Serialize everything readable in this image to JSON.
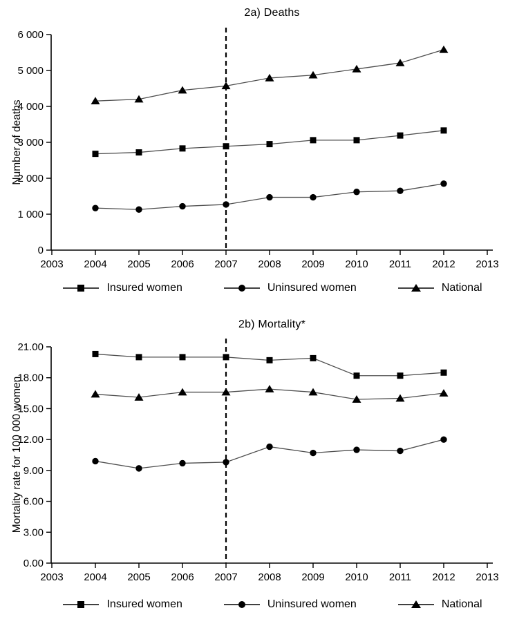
{
  "colors": {
    "axis": "#000000",
    "series_line": "#4d4d4d",
    "marker": "#000000",
    "reference_line": "#000000",
    "text": "#000000",
    "background": "#ffffff"
  },
  "chart_data": [
    {
      "type": "line",
      "title": "2a) Deaths",
      "ylabel": "Number of deaths",
      "xlim": [
        2003,
        2013
      ],
      "ylim": [
        0,
        6000
      ],
      "grid": false,
      "legend_position": "bottom",
      "reference_line_x": 2007,
      "x": [
        2004,
        2005,
        2006,
        2007,
        2008,
        2009,
        2010,
        2011,
        2012
      ],
      "xticks": [
        "2003",
        "2004",
        "2005",
        "2006",
        "2007",
        "2008",
        "2009",
        "2010",
        "2011",
        "2012",
        "2013"
      ],
      "yticks": [
        "0",
        "1 000",
        "2 000",
        "3 000",
        "4 000",
        "5 000",
        "6 000"
      ],
      "ytick_values": [
        0,
        1000,
        2000,
        3000,
        4000,
        5000,
        6000
      ],
      "series": [
        {
          "name": "Insured women",
          "marker": "square",
          "values": [
            2680,
            2720,
            2830,
            2890,
            2950,
            3060,
            3060,
            3190,
            3330
          ]
        },
        {
          "name": "Uninsured women",
          "marker": "circle",
          "values": [
            1170,
            1130,
            1220,
            1270,
            1470,
            1470,
            1620,
            1650,
            1850
          ]
        },
        {
          "name": "National",
          "marker": "triangle",
          "values": [
            4150,
            4200,
            4450,
            4570,
            4790,
            4870,
            5040,
            5210,
            5580
          ]
        }
      ]
    },
    {
      "type": "line",
      "title": "2b) Mortality*",
      "ylabel": "Mortality rate for 100 000 women",
      "xlim": [
        2003,
        2013
      ],
      "ylim": [
        0,
        21
      ],
      "grid": false,
      "legend_position": "bottom",
      "reference_line_x": 2007,
      "x": [
        2004,
        2005,
        2006,
        2007,
        2008,
        2009,
        2010,
        2011,
        2012
      ],
      "xticks": [
        "2003",
        "2004",
        "2005",
        "2006",
        "2007",
        "2008",
        "2009",
        "2010",
        "2011",
        "2012",
        "2013"
      ],
      "yticks": [
        "0.00",
        "3.00",
        "6.00",
        "9.00",
        "12.00",
        "15.00",
        "18.00",
        "21.00"
      ],
      "ytick_values": [
        0,
        3,
        6,
        9,
        12,
        15,
        18,
        21
      ],
      "series": [
        {
          "name": "Insured women",
          "marker": "square",
          "values": [
            20.3,
            20.0,
            20.0,
            20.0,
            19.7,
            19.9,
            18.2,
            18.2,
            18.5
          ]
        },
        {
          "name": "Uninsured women",
          "marker": "circle",
          "values": [
            9.9,
            9.2,
            9.7,
            9.8,
            11.3,
            10.7,
            11.0,
            10.9,
            12.0
          ]
        },
        {
          "name": "National",
          "marker": "triangle",
          "values": [
            16.4,
            16.1,
            16.6,
            16.6,
            16.9,
            16.6,
            15.9,
            16.0,
            16.5
          ]
        }
      ]
    }
  ]
}
